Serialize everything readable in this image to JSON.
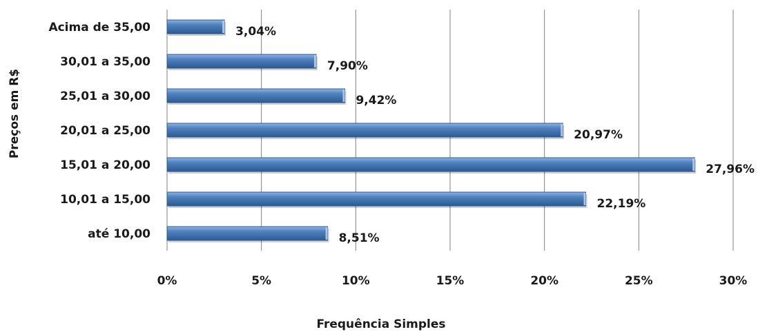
{
  "chart_data": {
    "type": "bar",
    "orientation": "horizontal",
    "categories": [
      "até 10,00",
      "10,01 a 15,00",
      "15,01 a 20,00",
      "20,01 a 25,00",
      "25,01 a 30,00",
      "30,01 a 35,00",
      "Acima de 35,00"
    ],
    "values": [
      8.51,
      22.19,
      27.96,
      20.97,
      9.42,
      7.9,
      3.04
    ],
    "data_labels": [
      "8,51%",
      "22,19%",
      "27,96%",
      "20,97%",
      "9,42%",
      "7,90%",
      "3,04%"
    ],
    "xlabel": "Frequência Simples",
    "ylabel": "Preços em R$",
    "xlim": [
      0,
      30
    ],
    "x_ticks": [
      "0%",
      "5%",
      "10%",
      "15%",
      "20%",
      "25%",
      "30%"
    ],
    "grid": "vertical",
    "legend": "none",
    "colors": {
      "bar_light": "#8fb4e3",
      "bar_mid": "#4f81bd",
      "bar_dark": "#2c5a93",
      "bar_cap": "#bcd2ee",
      "grid": "#7f7f7f"
    }
  }
}
